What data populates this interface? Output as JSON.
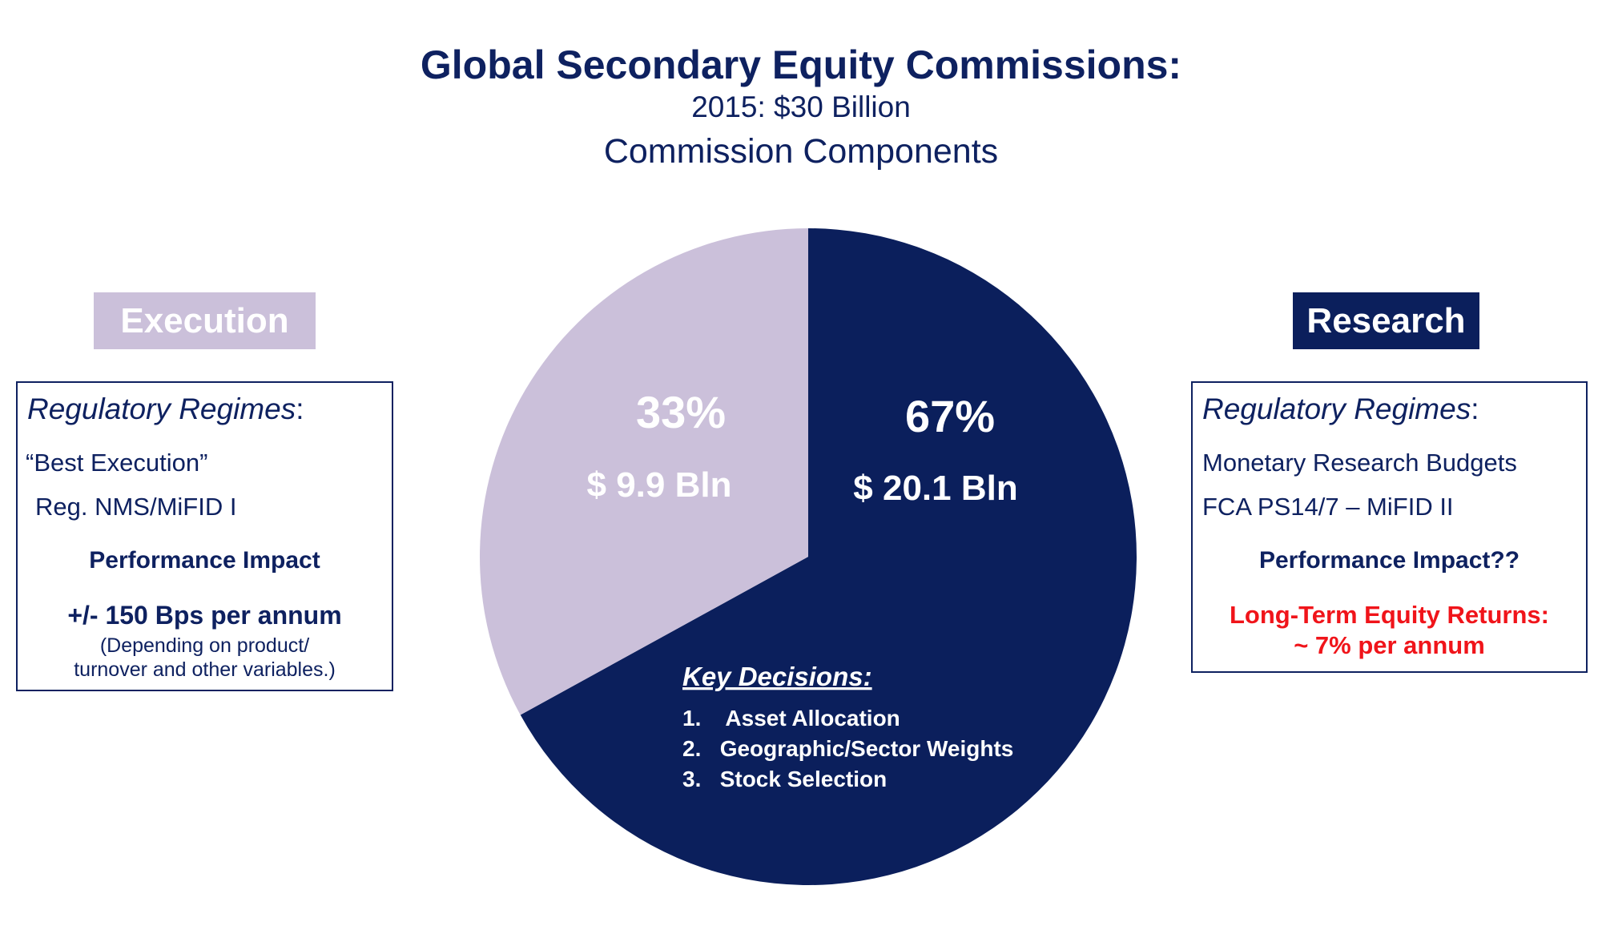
{
  "header": {
    "title": "Global Secondary Equity Commissions:",
    "subtitle": "2015:  $30 Billion",
    "subtitle2": "Commission Components"
  },
  "execution": {
    "label": "Execution",
    "regimes_title": "Regulatory Regimes",
    "regimes_colon": ":",
    "line1": "“Best Execution”",
    "line2": "Reg. NMS/MiFID I",
    "impact_title": "Performance Impact",
    "impact_value": "+/- 150 Bps per annum",
    "note1": "(Depending on product/",
    "note2": "turnover and other variables.)"
  },
  "research": {
    "label": "Research",
    "regimes_title": "Regulatory Regimes",
    "regimes_colon": ":",
    "line1": "Monetary Research Budgets",
    "line2": "FCA PS14/7 – MiFID II",
    "impact_title": "Performance Impact??",
    "returns1": "Long-Term Equity Returns:",
    "returns2": "~ 7% per annum"
  },
  "chart_data": {
    "type": "pie",
    "slices": [
      {
        "label": "Research",
        "percent": 67,
        "value_text": "$ 20.1 Bln",
        "percent_text": "67%",
        "color": "#0b1f5c"
      },
      {
        "label": "Execution",
        "percent": 33,
        "value_text": "$ 9.9 Bln",
        "percent_text": "33%",
        "color": "#cbc0da"
      }
    ],
    "start_angle_deg": 0,
    "direction": "clockwise"
  },
  "key_decisions": {
    "title": "Key Decisions:",
    "items": [
      "1.    Asset Allocation",
      "2.   Geographic/Sector Weights",
      "3.   Stock Selection"
    ]
  }
}
